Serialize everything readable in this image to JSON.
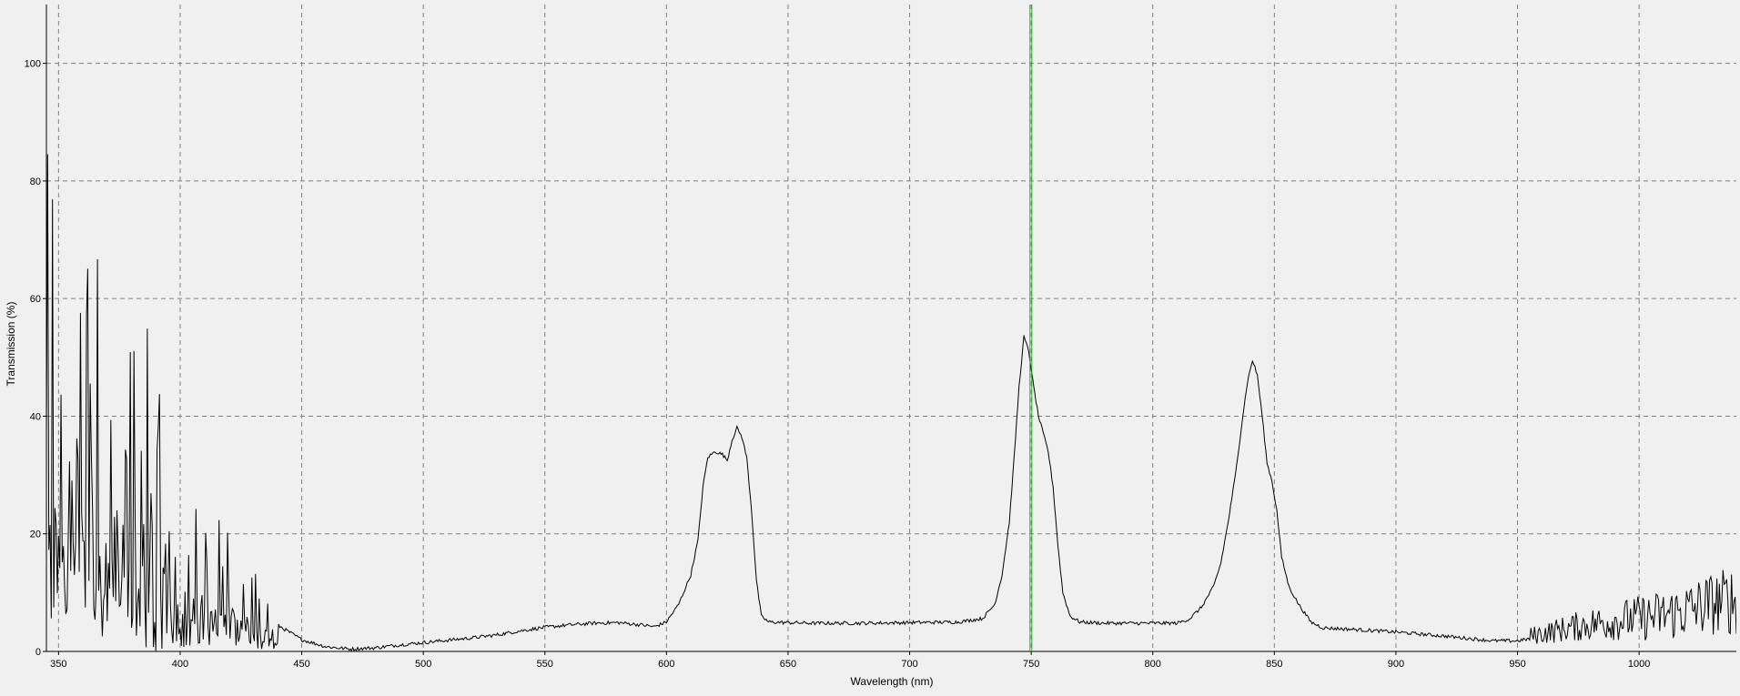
{
  "chart_data": {
    "type": "line",
    "title": "",
    "xlabel": "Wavelength (nm)",
    "ylabel": "Transmission (%)",
    "xlim": [
      345,
      1040
    ],
    "ylim": [
      0,
      110
    ],
    "grid": true,
    "x_ticks": [
      350,
      400,
      450,
      500,
      550,
      600,
      650,
      700,
      750,
      800,
      850,
      900,
      950,
      1000
    ],
    "y_ticks": [
      0,
      20,
      40,
      60,
      80,
      100
    ],
    "marker": {
      "x": 749.5,
      "color": "#00cc00"
    },
    "colors": {
      "background": "#f0f0f0",
      "line": "#000000",
      "grid": "#808080"
    },
    "series": [
      {
        "name": "Transmission",
        "smooth_points": [
          [
            430,
            7
          ],
          [
            440,
            4.5
          ],
          [
            450,
            2.0
          ],
          [
            460,
            0.8
          ],
          [
            470,
            0.4
          ],
          [
            480,
            0.6
          ],
          [
            490,
            1.1
          ],
          [
            500,
            1.5
          ],
          [
            510,
            1.9
          ],
          [
            520,
            2.3
          ],
          [
            530,
            2.8
          ],
          [
            540,
            3.5
          ],
          [
            550,
            4.1
          ],
          [
            560,
            4.5
          ],
          [
            570,
            4.8
          ],
          [
            580,
            4.9
          ],
          [
            590,
            4.5
          ],
          [
            595,
            4.2
          ],
          [
            600,
            5.0
          ],
          [
            605,
            8
          ],
          [
            610,
            13
          ],
          [
            613,
            19
          ],
          [
            615,
            28
          ],
          [
            617,
            33
          ],
          [
            620,
            34
          ],
          [
            623,
            33.5
          ],
          [
            625,
            32.5
          ],
          [
            627,
            36
          ],
          [
            629,
            38
          ],
          [
            631,
            36.5
          ],
          [
            633,
            33
          ],
          [
            635,
            24
          ],
          [
            637,
            12
          ],
          [
            639,
            6
          ],
          [
            642,
            5
          ],
          [
            650,
            4.9
          ],
          [
            660,
            4.8
          ],
          [
            680,
            4.8
          ],
          [
            700,
            4.9
          ],
          [
            720,
            5.0
          ],
          [
            730,
            5.6
          ],
          [
            735,
            8
          ],
          [
            738,
            13
          ],
          [
            741,
            22
          ],
          [
            743,
            33
          ],
          [
            745,
            45
          ],
          [
            747,
            53.5
          ],
          [
            749,
            51
          ],
          [
            751,
            45
          ],
          [
            753,
            40
          ],
          [
            755,
            37
          ],
          [
            757,
            34
          ],
          [
            759,
            28
          ],
          [
            761,
            18
          ],
          [
            763,
            10
          ],
          [
            766,
            6
          ],
          [
            770,
            5.0
          ],
          [
            780,
            4.8
          ],
          [
            800,
            4.8
          ],
          [
            810,
            4.8
          ],
          [
            815,
            5.5
          ],
          [
            820,
            7.5
          ],
          [
            825,
            11
          ],
          [
            828,
            15
          ],
          [
            831,
            22
          ],
          [
            834,
            30
          ],
          [
            837,
            40
          ],
          [
            839,
            46
          ],
          [
            841,
            49.5
          ],
          [
            843,
            47
          ],
          [
            845,
            40
          ],
          [
            847,
            32
          ],
          [
            849,
            29
          ],
          [
            851,
            24
          ],
          [
            853,
            16
          ],
          [
            856,
            11
          ],
          [
            860,
            8
          ],
          [
            865,
            5.0
          ],
          [
            870,
            4.0
          ],
          [
            880,
            3.8
          ],
          [
            900,
            3.3
          ],
          [
            920,
            2.6
          ],
          [
            940,
            1.8
          ],
          [
            950,
            1.8
          ],
          [
            960,
            2.5
          ],
          [
            970,
            3.2
          ],
          [
            980,
            3.8
          ],
          [
            990,
            4.2
          ],
          [
            1000,
            4.5
          ],
          [
            1010,
            4.8
          ],
          [
            1020,
            5.5
          ],
          [
            1030,
            6.5
          ],
          [
            1040,
            7
          ]
        ],
        "noisy_regions": [
          {
            "x_start": 345,
            "x_end": 440,
            "amplitude_start": 110,
            "amplitude_end": 6
          },
          {
            "x_start": 955,
            "x_end": 1040,
            "amplitude_start": 3,
            "amplitude_end": 12
          }
        ]
      }
    ]
  }
}
